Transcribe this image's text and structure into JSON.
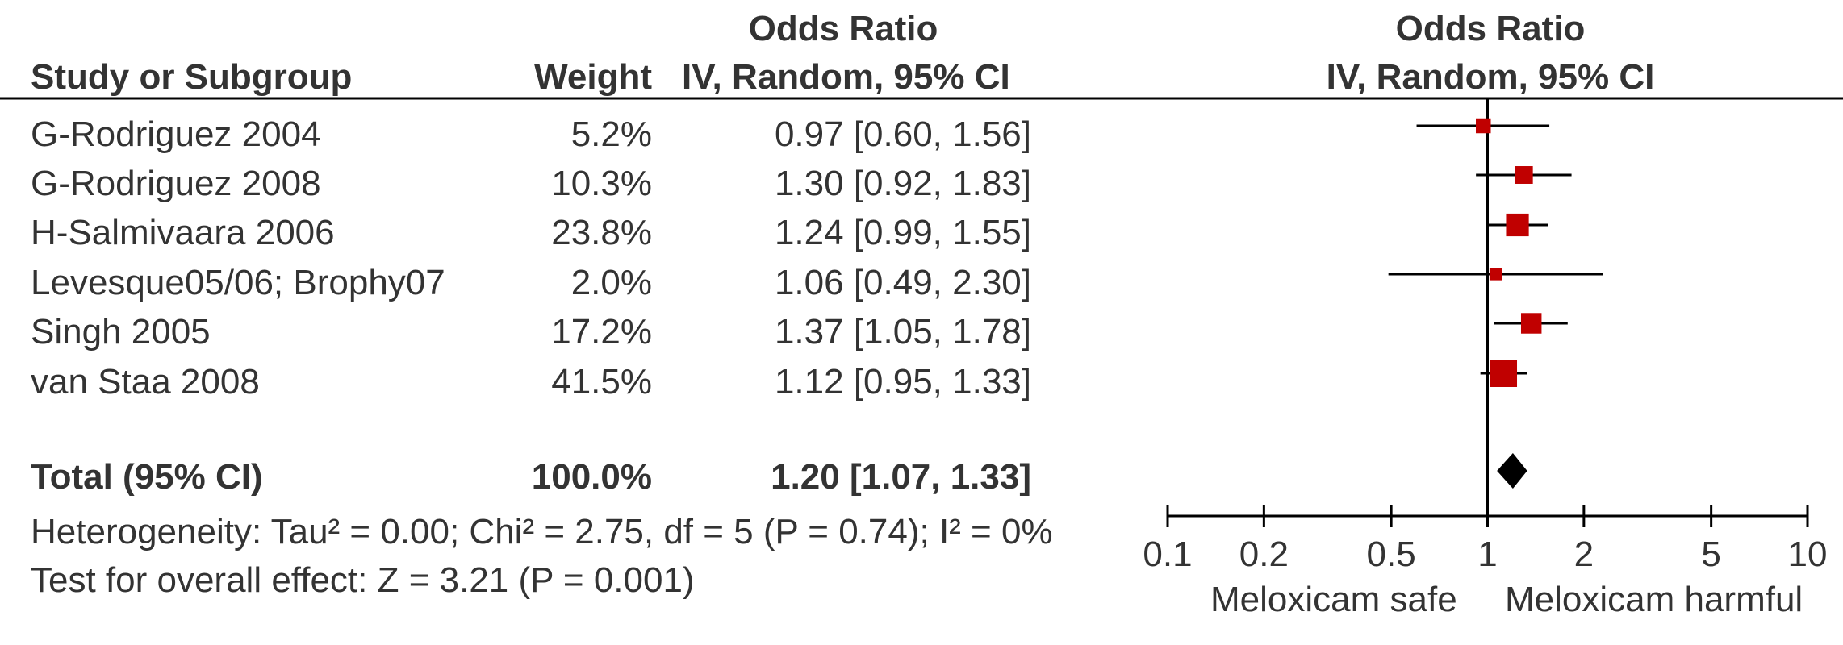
{
  "header": {
    "left_group": "Odds Ratio",
    "right_group": "Odds Ratio",
    "col_study": "Study or Subgroup",
    "col_weight": "Weight",
    "col_or": "IV, Random, 95% CI",
    "col_plot": "IV, Random, 95% CI"
  },
  "rows": [
    {
      "study": "G-Rodriguez 2004",
      "weight": "5.2%",
      "ci": "0.97 [0.60, 1.56]"
    },
    {
      "study": "G-Rodriguez 2008",
      "weight": "10.3%",
      "ci": "1.30 [0.92, 1.83]"
    },
    {
      "study": "H-Salmivaara 2006",
      "weight": "23.8%",
      "ci": "1.24 [0.99, 1.55]"
    },
    {
      "study": "Levesque05/06; Brophy07",
      "weight": "2.0%",
      "ci": "1.06 [0.49, 2.30]"
    },
    {
      "study": "Singh 2005",
      "weight": "17.2%",
      "ci": "1.37 [1.05, 1.78]"
    },
    {
      "study": "van Staa 2008",
      "weight": "41.5%",
      "ci": "1.12 [0.95, 1.33]"
    }
  ],
  "total": {
    "label": "Total (95% CI)",
    "weight": "100.0%",
    "ci": "1.20 [1.07, 1.33]"
  },
  "footer": {
    "heterogeneity": "Heterogeneity: Tau² = 0.00; Chi² = 2.75, df = 5 (P = 0.74); I² = 0%",
    "overall": "Test for overall effect: Z = 3.21 (P = 0.001)"
  },
  "axis": {
    "ticks": [
      "0.1",
      "0.2",
      "0.5",
      "1",
      "2",
      "5",
      "10"
    ],
    "left_label": "Meloxicam safe",
    "right_label": "Meloxicam harmful"
  },
  "colors": {
    "study_marker": "#c00000",
    "pooled_marker": "#000000",
    "line": "#000000",
    "text": "#333333"
  },
  "chart_data": {
    "type": "forest",
    "scale": "log",
    "xlim": [
      0.1,
      10
    ],
    "reference_line": 1,
    "studies": [
      {
        "name": "G-Rodriguez 2004",
        "weight": 5.2,
        "or": 0.97,
        "lo": 0.6,
        "hi": 1.56
      },
      {
        "name": "G-Rodriguez 2008",
        "weight": 10.3,
        "or": 1.3,
        "lo": 0.92,
        "hi": 1.83
      },
      {
        "name": "H-Salmivaara 2006",
        "weight": 23.8,
        "or": 1.24,
        "lo": 0.99,
        "hi": 1.55
      },
      {
        "name": "Levesque05/06; Brophy07",
        "weight": 2.0,
        "or": 1.06,
        "lo": 0.49,
        "hi": 2.3
      },
      {
        "name": "Singh 2005",
        "weight": 17.2,
        "or": 1.37,
        "lo": 1.05,
        "hi": 1.78
      },
      {
        "name": "van Staa 2008",
        "weight": 41.5,
        "or": 1.12,
        "lo": 0.95,
        "hi": 1.33
      }
    ],
    "pooled": {
      "name": "Total (95% CI)",
      "or": 1.2,
      "lo": 1.07,
      "hi": 1.33
    }
  }
}
